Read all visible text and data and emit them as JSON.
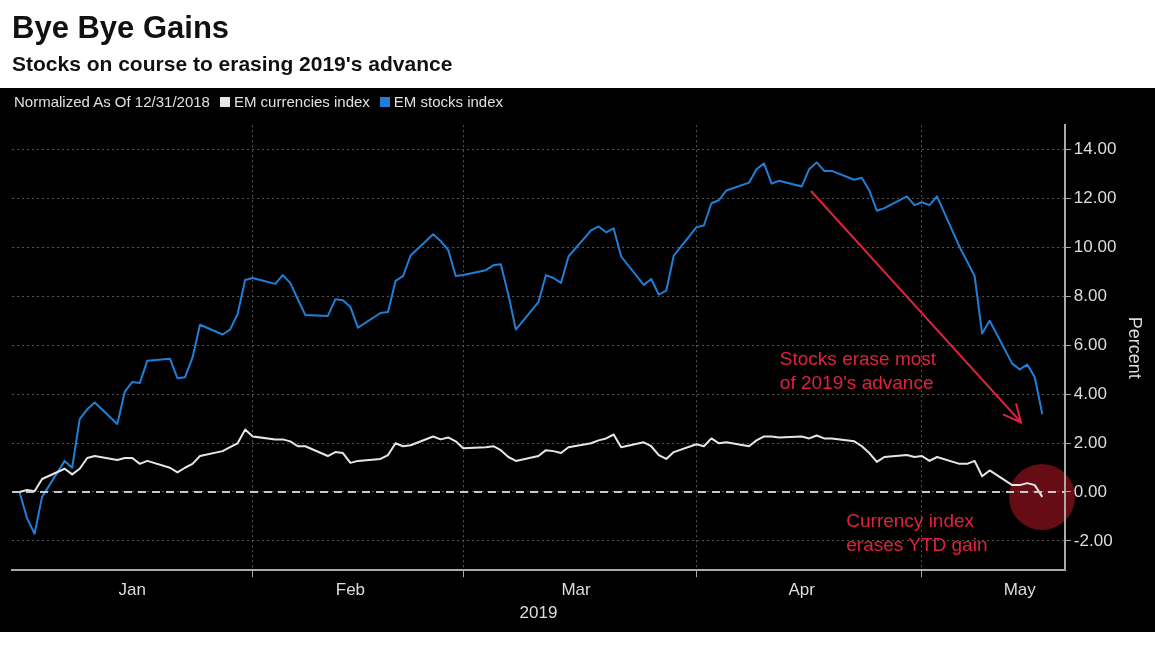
{
  "chart_data": {
    "type": "line",
    "title": "Bye Bye Gains",
    "subtitle": "Stocks on course to erasing 2019's advance",
    "legend_title": "Normalized As Of 12/31/2018",
    "xlabel": "2019",
    "ylabel": "Percent",
    "x": [
      "2018-12-31",
      "2019-01-01",
      "2019-01-02",
      "2019-01-03",
      "2019-01-04",
      "2019-01-07",
      "2019-01-08",
      "2019-01-09",
      "2019-01-10",
      "2019-01-11",
      "2019-01-14",
      "2019-01-15",
      "2019-01-16",
      "2019-01-17",
      "2019-01-18",
      "2019-01-21",
      "2019-01-22",
      "2019-01-23",
      "2019-01-24",
      "2019-01-25",
      "2019-01-28",
      "2019-01-29",
      "2019-01-30",
      "2019-01-31",
      "2019-02-01",
      "2019-02-04",
      "2019-02-05",
      "2019-02-06",
      "2019-02-07",
      "2019-02-08",
      "2019-02-11",
      "2019-02-12",
      "2019-02-13",
      "2019-02-14",
      "2019-02-15",
      "2019-02-18",
      "2019-02-19",
      "2019-02-20",
      "2019-02-21",
      "2019-02-22",
      "2019-02-25",
      "2019-02-26",
      "2019-02-27",
      "2019-02-28",
      "2019-03-01",
      "2019-03-04",
      "2019-03-05",
      "2019-03-06",
      "2019-03-07",
      "2019-03-08",
      "2019-03-11",
      "2019-03-12",
      "2019-03-13",
      "2019-03-14",
      "2019-03-15",
      "2019-03-18",
      "2019-03-19",
      "2019-03-20",
      "2019-03-21",
      "2019-03-22",
      "2019-03-25",
      "2019-03-26",
      "2019-03-27",
      "2019-03-28",
      "2019-03-29",
      "2019-04-01",
      "2019-04-02",
      "2019-04-03",
      "2019-04-04",
      "2019-04-05",
      "2019-04-08",
      "2019-04-09",
      "2019-04-10",
      "2019-04-11",
      "2019-04-12",
      "2019-04-15",
      "2019-04-16",
      "2019-04-17",
      "2019-04-18",
      "2019-04-19",
      "2019-04-22",
      "2019-04-23",
      "2019-04-24",
      "2019-04-25",
      "2019-04-26",
      "2019-04-29",
      "2019-04-30",
      "2019-05-01",
      "2019-05-02",
      "2019-05-03",
      "2019-05-06",
      "2019-05-07",
      "2019-05-08",
      "2019-05-09",
      "2019-05-10",
      "2019-05-13",
      "2019-05-14",
      "2019-05-15",
      "2019-05-16",
      "2019-05-17"
    ],
    "series": [
      {
        "name": "EM currencies index",
        "color": "#e6e6e6",
        "values": [
          0,
          0,
          0.08,
          0.03,
          0.53,
          0.95,
          0.72,
          0.95,
          1.39,
          1.47,
          1.31,
          1.39,
          1.39,
          1.15,
          1.27,
          0.99,
          0.8,
          0.99,
          1.15,
          1.47,
          1.67,
          1.83,
          1.99,
          2.55,
          2.27,
          2.15,
          2.15,
          2.07,
          1.87,
          1.87,
          1.47,
          1.63,
          1.59,
          1.19,
          1.27,
          1.35,
          1.51,
          1.99,
          1.87,
          1.91,
          2.27,
          2.15,
          2.23,
          2.07,
          1.79,
          1.83,
          1.87,
          1.71,
          1.43,
          1.27,
          1.47,
          1.71,
          1.67,
          1.59,
          1.83,
          1.99,
          2.11,
          2.19,
          2.35,
          1.83,
          2.03,
          1.87,
          1.51,
          1.35,
          1.63,
          1.95,
          1.87,
          2.19,
          1.99,
          2.03,
          1.87,
          2.11,
          2.27,
          2.27,
          2.23,
          2.27,
          2.19,
          2.31,
          2.19,
          2.19,
          2.07,
          1.87,
          1.59,
          1.23,
          1.43,
          1.51,
          1.43,
          1.47,
          1.27,
          1.43,
          1.15,
          1.15,
          1.27,
          0.64,
          0.88,
          0.28,
          0.28,
          0.36,
          0.28,
          -0.2
        ]
      },
      {
        "name": "EM stocks index",
        "color": "#1f7fd6",
        "values": [
          0,
          0,
          -1.07,
          -1.71,
          -0.2,
          1.27,
          0.99,
          2.98,
          3.38,
          3.66,
          2.78,
          4.1,
          4.5,
          4.46,
          5.37,
          5.45,
          4.65,
          4.69,
          5.49,
          6.84,
          6.44,
          6.64,
          7.28,
          8.67,
          8.75,
          8.51,
          8.87,
          8.55,
          7.88,
          7.24,
          7.2,
          7.88,
          7.84,
          7.56,
          6.72,
          7.32,
          7.36,
          8.63,
          8.83,
          9.67,
          10.54,
          10.26,
          9.9,
          8.83,
          8.87,
          9.07,
          9.27,
          9.31,
          8.07,
          6.64,
          7.76,
          8.87,
          8.75,
          8.55,
          9.63,
          10.7,
          10.86,
          10.62,
          10.78,
          9.63,
          8.47,
          8.71,
          8.07,
          8.23,
          9.67,
          10.82,
          10.9,
          11.81,
          11.93,
          12.33,
          12.65,
          13.2,
          13.44,
          12.61,
          12.73,
          12.49,
          13.2,
          13.48,
          13.13,
          13.13,
          12.77,
          12.85,
          12.33,
          11.5,
          11.61,
          12.09,
          11.73,
          11.85,
          11.73,
          12.09,
          10.02,
          9.43,
          8.83,
          6.48,
          7.0,
          5.25,
          5.01,
          5.21,
          4.69,
          3.18
        ]
      }
    ],
    "xlim": [
      "2018-12-31",
      "2019-05-20"
    ],
    "xticks": [
      {
        "value": "2019-01-16",
        "label": "Jan"
      },
      {
        "value": "2019-02-01",
        "label": null
      },
      {
        "value": "2019-02-14",
        "label": "Feb"
      },
      {
        "value": "2019-03-01",
        "label": null
      },
      {
        "value": "2019-03-16",
        "label": "Mar"
      },
      {
        "value": "2019-04-01",
        "label": null
      },
      {
        "value": "2019-04-15",
        "label": "Apr"
      },
      {
        "value": "2019-05-01",
        "label": null
      },
      {
        "value": "2019-05-14",
        "label": "May"
      }
    ],
    "ylim": [
      -3.2,
      15
    ],
    "yticks": [
      {
        "value": -2,
        "label": "-2.00"
      },
      {
        "value": 0,
        "label": "0.00"
      },
      {
        "value": 2,
        "label": "2.00"
      },
      {
        "value": 4,
        "label": "4.00"
      },
      {
        "value": 6,
        "label": "6.00"
      },
      {
        "value": 8,
        "label": "8.00"
      },
      {
        "value": 10,
        "label": "10.00"
      },
      {
        "value": 12,
        "label": "12.00"
      },
      {
        "value": 14,
        "label": "14.00"
      }
    ],
    "ref_lines": [
      {
        "axis": "y",
        "value": 0,
        "color": "#c8c8c8",
        "line_style": "dashed"
      }
    ],
    "annotations": [
      "Stocks erase most of 2019's advance",
      {
        "text": "Currency index erases YTD gain",
        "x": "2019-05-17",
        "y": -0.2
      }
    ],
    "grid": true,
    "legend": "top left"
  }
}
